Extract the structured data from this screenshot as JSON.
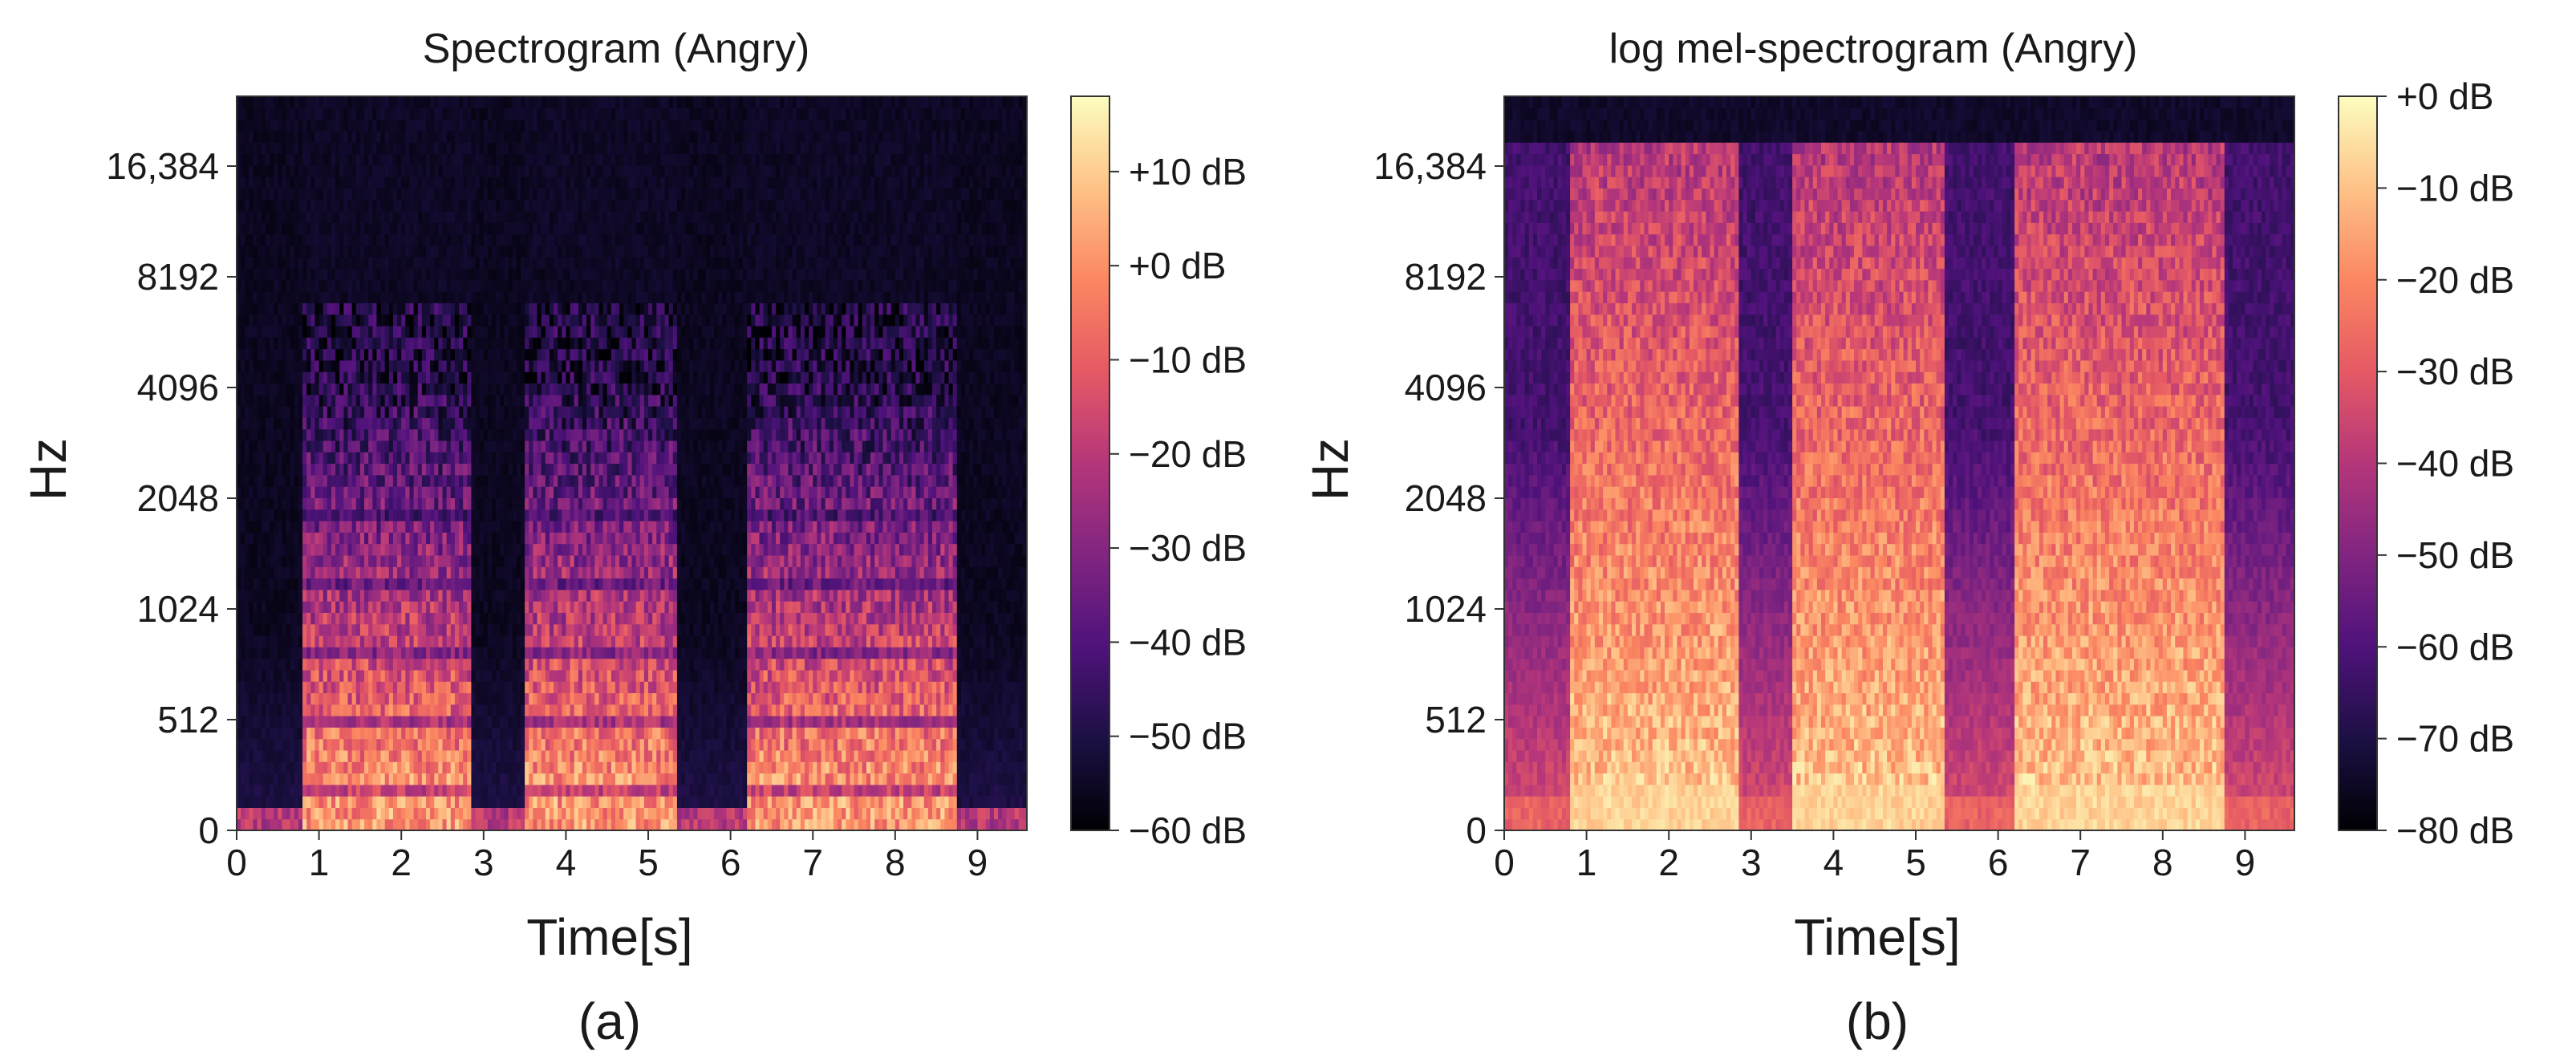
{
  "chart_data": [
    {
      "type": "heatmap",
      "title": "Spectrogram (Angry)",
      "xlabel": "Time[s]",
      "ylabel": "Hz",
      "panel_label": "(a)",
      "x_ticks": [
        0,
        1,
        2,
        3,
        4,
        5,
        6,
        7,
        8,
        9
      ],
      "xlim": [
        0,
        9.6
      ],
      "y_ticks": [
        "0",
        "512",
        "1024",
        "2048",
        "4096",
        "8192",
        "16,384"
      ],
      "y_scale": "log-like (frequency)",
      "colormap": "magma",
      "colorbar": {
        "ticks": [
          "+10 dB",
          "+0 dB",
          "−10 dB",
          "−20 dB",
          "−30 dB",
          "−40 dB",
          "−50 dB",
          "−60 dB"
        ],
        "range_db": [
          -60,
          18
        ]
      },
      "speech_segments_s": [
        [
          0.8,
          2.85
        ],
        [
          3.5,
          5.35
        ],
        [
          6.2,
          8.75
        ]
      ]
    },
    {
      "type": "heatmap",
      "title": "log mel-spectrogram (Angry)",
      "xlabel": "Time[s]",
      "ylabel": "Hz",
      "panel_label": "(b)",
      "x_ticks": [
        0,
        1,
        2,
        3,
        4,
        5,
        6,
        7,
        8,
        9
      ],
      "xlim": [
        0,
        9.6
      ],
      "y_ticks": [
        "0",
        "512",
        "1024",
        "2048",
        "4096",
        "8192",
        "16,384"
      ],
      "y_scale": "mel",
      "colormap": "magma",
      "colorbar": {
        "ticks": [
          "+0 dB",
          "−10 dB",
          "−20 dB",
          "−30 dB",
          "−40 dB",
          "−50 dB",
          "−60 dB",
          "−70 dB",
          "−80 dB"
        ],
        "range_db": [
          -80,
          0
        ]
      },
      "speech_segments_s": [
        [
          0.8,
          2.85
        ],
        [
          3.5,
          5.35
        ],
        [
          6.2,
          8.75
        ]
      ]
    }
  ],
  "colors": {
    "magma": [
      "#000004",
      "#1c1044",
      "#4f127b",
      "#812581",
      "#b5367a",
      "#e55964",
      "#fb8761",
      "#fec287",
      "#fcfdbf"
    ]
  }
}
